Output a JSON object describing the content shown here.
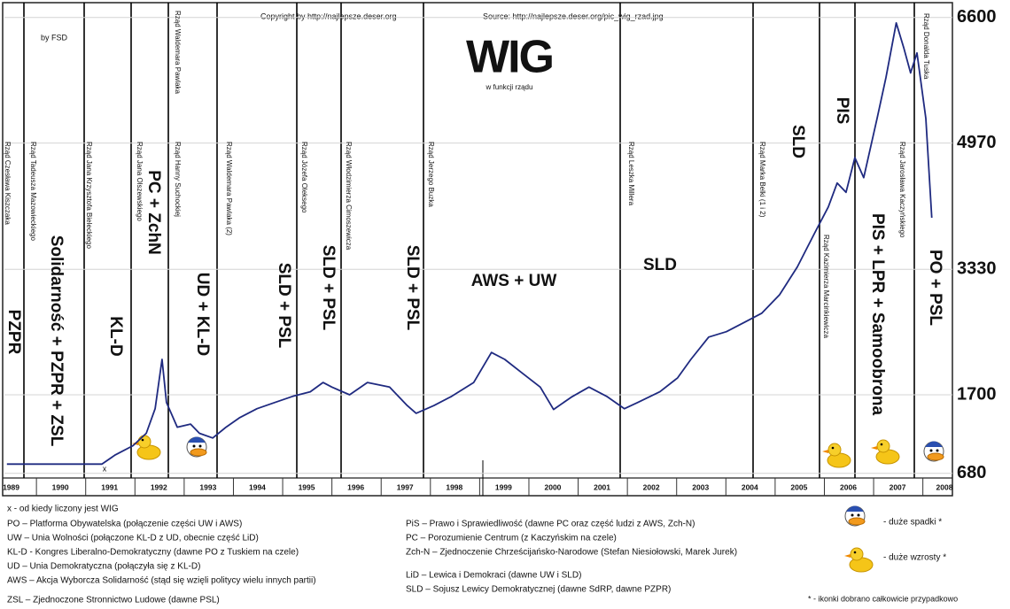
{
  "chart_data": {
    "type": "line",
    "title": "WIG",
    "subtitle": "w funkcji rządu",
    "copyright": "Copyright by http://najlepsze.deser.org",
    "source": "Source: http://najlepsze.deser.org/pic_wig_rzad.jpg",
    "author": "by FSD",
    "start_marker": "x",
    "color": "#1f2a80",
    "grid": true,
    "xlim": [
      1989.35,
      2008.6
    ],
    "xticks": [
      1989,
      1990,
      1991,
      1992,
      1993,
      1994,
      1995,
      1996,
      1997,
      1998,
      1999,
      2000,
      2001,
      2002,
      2003,
      2004,
      2005,
      2006,
      2007,
      2008
    ],
    "ylim": [
      620,
      6770
    ],
    "yticks": [
      680,
      1700,
      3330,
      4970,
      6600
    ],
    "x": [
      1989.4,
      1991.33,
      1991.6,
      1991.96,
      1992.23,
      1992.41,
      1992.55,
      1992.64,
      1992.86,
      1993.13,
      1993.31,
      1993.58,
      1993.85,
      1994.12,
      1994.48,
      1994.84,
      1995.2,
      1995.56,
      1995.82,
      1996.0,
      1996.36,
      1996.72,
      1997.17,
      1997.53,
      1997.71,
      1998.07,
      1998.43,
      1998.88,
      1999.24,
      1999.51,
      1999.87,
      2000.23,
      2000.5,
      2000.86,
      2001.22,
      2001.58,
      2001.94,
      2002.21,
      2002.66,
      2003.02,
      2003.29,
      2003.65,
      2004.01,
      2004.37,
      2004.73,
      2005.09,
      2005.45,
      2005.81,
      2006.08,
      2006.26,
      2006.44,
      2006.62,
      2006.8,
      2007.07,
      2007.25,
      2007.46,
      2007.61,
      2007.75,
      2007.88,
      2008.06,
      2008.18
    ],
    "values": [
      800,
      800,
      920,
      1040,
      1200,
      1520,
      2160,
      1600,
      1280,
      1320,
      1200,
      1140,
      1280,
      1400,
      1520,
      1600,
      1680,
      1740,
      1860,
      1800,
      1700,
      1860,
      1800,
      1560,
      1460,
      1560,
      1680,
      1860,
      2250,
      2160,
      1980,
      1800,
      1510,
      1670,
      1800,
      1680,
      1520,
      1600,
      1740,
      1920,
      2160,
      2450,
      2520,
      2640,
      2760,
      3000,
      3360,
      3810,
      4140,
      4450,
      4330,
      4780,
      4520,
      5290,
      5820,
      6530,
      6210,
      5880,
      6140,
      5290,
      4000
    ],
    "governments": [
      "Rząd Czesława Kiszczaka",
      "Rząd Tadeusza Mazowieckiego",
      "Rząd Jana Krzysztofa Bieleckiego",
      "Rząd Jana Olszewskiego",
      "Rząd Waldemara Pawlaka",
      "Rząd Hanny Suchockiej",
      "Rząd Waldemara Pawlaka (2)",
      "Rząd Józefa Oleksego",
      "Rząd Włodzimierza Cimoszewicza",
      "Rząd Jerzego Buzka",
      "Rząd Leszka Millera",
      "Rząd Marka Belki (1 i 2)",
      "Rząd Kazimierza Marcinkiewicza",
      "Rząd Jarosława Kaczyńskiego",
      "Rząd Donalda Tuska"
    ],
    "coalitions": [
      "PZPR",
      "Solidarność + PZPR + ZSL",
      "KL-D",
      "PC + ZchN",
      "UD + KL-D",
      "SLD + PSL",
      "SLD + PSL",
      "SLD + PSL",
      "AWS + UW",
      "SLD",
      "SLD",
      "PIS",
      "PIS + LPR + Samoobrona",
      "PO + PSL"
    ],
    "notes_left": [
      "x - od kiedy liczony jest WIG",
      "PO – Platforma Obywatelska (połączenie części UW i AWS)",
      "UW – Unia Wolności (połączone KL-D z UD, obecnie część LiD)",
      "KL-D - Kongres Liberalno-Demokratyczny (dawne PO z Tuskiem na czele)",
      "UD – Unia Demokratyczna (połączyła się z KL-D)",
      "AWS – Akcja Wyborcza Solidarność (stąd się wzięli politycy wielu innych partii)",
      "ZSL – Zjednoczone Stronnictwo Ludowe (dawne PSL)"
    ],
    "notes_right": [
      "PiS – Prawo i Sprawiedliwość (dawne PC oraz część ludzi z AWS, Zch-N)",
      "PC – Porozumienie Centrum (z Kaczyńskim na czele)",
      "Zch-N – Zjednoczenie Chrześcijańsko-Narodowe (Stefan Niesiołowski, Marek Jurek)",
      "LiD – Lewica i Demokraci (dawne UW i SLD)",
      "SLD – Sojusz Lewicy Demokratycznej (dawne SdRP, dawne PZPR)"
    ],
    "icon_legend": {
      "falls": "- duże spadki *",
      "rises": "- duże wzrosty *",
      "footnote": "* - ikonki dobrano całkowicie przypadkowo"
    }
  }
}
